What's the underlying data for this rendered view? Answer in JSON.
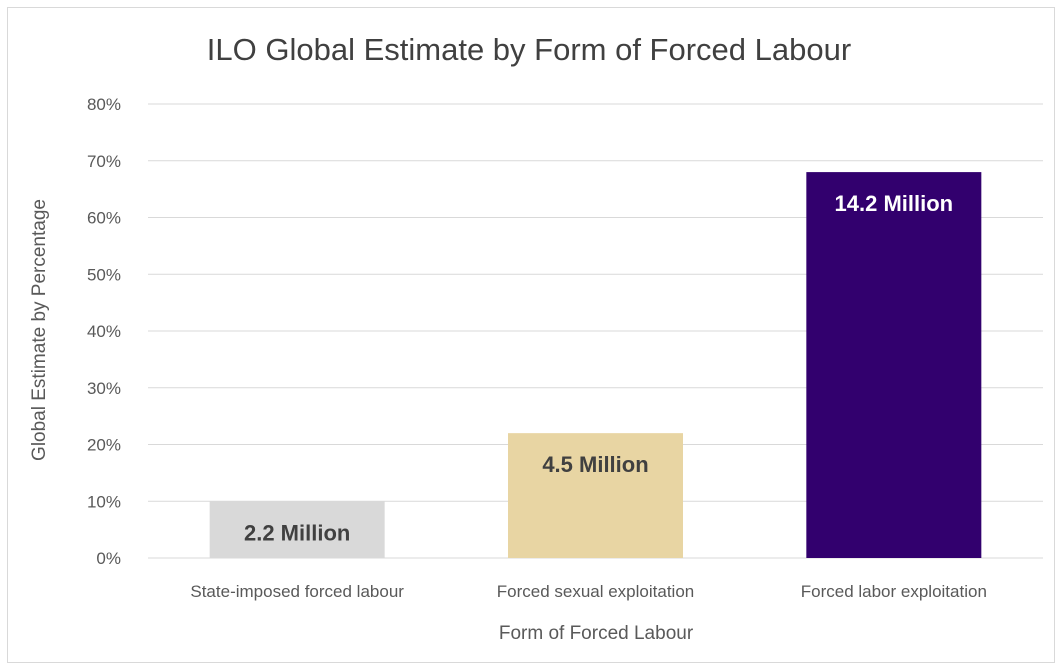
{
  "chart_data": {
    "type": "bar",
    "title": "ILO Global Estimate by Form of Forced Labour",
    "xlabel": "Form of Forced Labour",
    "ylabel": "Global Estimate by Percentage",
    "categories": [
      "State-imposed forced labour",
      "Forced sexual exploitation",
      "Forced labor exploitation"
    ],
    "values": [
      10,
      22,
      68
    ],
    "data_labels": [
      "2.2 Million",
      "4.5 Million",
      "14.2 Million"
    ],
    "bar_colors": [
      "#d9d9d9",
      "#e8d5a3",
      "#32006e"
    ],
    "label_colors": [
      "#404040",
      "#404040",
      "#ffffff"
    ],
    "ylim": [
      0,
      80
    ],
    "ytick_values": [
      0,
      10,
      20,
      30,
      40,
      50,
      60,
      70,
      80
    ],
    "ytick_labels": [
      "0%",
      "10%",
      "20%",
      "30%",
      "40%",
      "50%",
      "60%",
      "70%",
      "80%"
    ],
    "grid": true,
    "gridline_color": "#d9d9d9",
    "legend": "none"
  }
}
